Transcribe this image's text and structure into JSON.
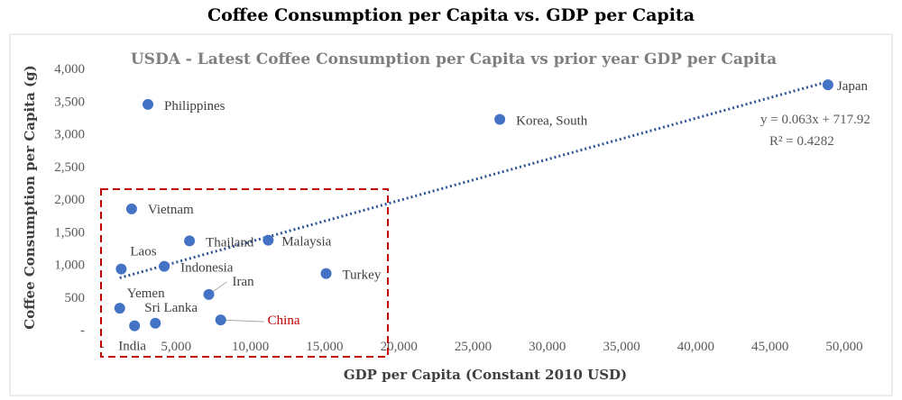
{
  "title": "Coffee Consumption per Capita vs. GDP per Capita",
  "chart_data": {
    "type": "scatter",
    "title": "USDA - Latest Coffee Consumption per Capita vs prior year GDP per Capita",
    "xlabel": "GDP per Capita (Constant 2010 USD)",
    "ylabel": "Coffee Consumption per Capita (g)",
    "xlim": [
      0,
      50000
    ],
    "ylim": [
      0,
      4000
    ],
    "x_ticks": [
      0,
      5000,
      10000,
      15000,
      20000,
      25000,
      30000,
      35000,
      40000,
      45000,
      50000
    ],
    "x_tick_labels": [
      "-",
      "5,000",
      "10,000",
      "15,000",
      "20,000",
      "25,000",
      "30,000",
      "35,000",
      "40,000",
      "45,000",
      "50,000"
    ],
    "y_ticks": [
      0,
      500,
      1000,
      1500,
      2000,
      2500,
      3000,
      3500,
      4000
    ],
    "y_tick_labels": [
      "-",
      "500",
      "1,000",
      "1,500",
      "2,000",
      "2,500",
      "3,000",
      "3,500",
      "4,000"
    ],
    "grid": false,
    "color": "#4472c4",
    "points": [
      {
        "label": "Japan",
        "x": 48900,
        "y": 3750
      },
      {
        "label": "Philippines",
        "x": 3100,
        "y": 3450
      },
      {
        "label": "Korea, South",
        "x": 26800,
        "y": 3220
      },
      {
        "label": "Vietnam",
        "x": 2000,
        "y": 1850
      },
      {
        "label": "Thailand",
        "x": 5900,
        "y": 1360
      },
      {
        "label": "Malaysia",
        "x": 11200,
        "y": 1370
      },
      {
        "label": "Laos",
        "x": 1300,
        "y": 930
      },
      {
        "label": "Indonesia",
        "x": 4200,
        "y": 970
      },
      {
        "label": "Turkey",
        "x": 15100,
        "y": 860
      },
      {
        "label": "Iran",
        "x": 7200,
        "y": 540
      },
      {
        "label": "Yemen",
        "x": 1200,
        "y": 330
      },
      {
        "label": "Sri Lanka",
        "x": 3600,
        "y": 100
      },
      {
        "label": "India",
        "x": 2200,
        "y": 60
      },
      {
        "label": "China",
        "x": 8000,
        "y": 150
      }
    ],
    "trendline": {
      "type": "linear",
      "slope": 0.063,
      "intercept": 717.92,
      "r2": 0.4282,
      "equation_label": "y = 0.063x + 717.92",
      "r2_label": "R² = 0.4282",
      "color": "#2f5597"
    },
    "highlight_box": {
      "color": "#c00000",
      "style": "dashed"
    },
    "highlight_label_color": "#c00000"
  }
}
